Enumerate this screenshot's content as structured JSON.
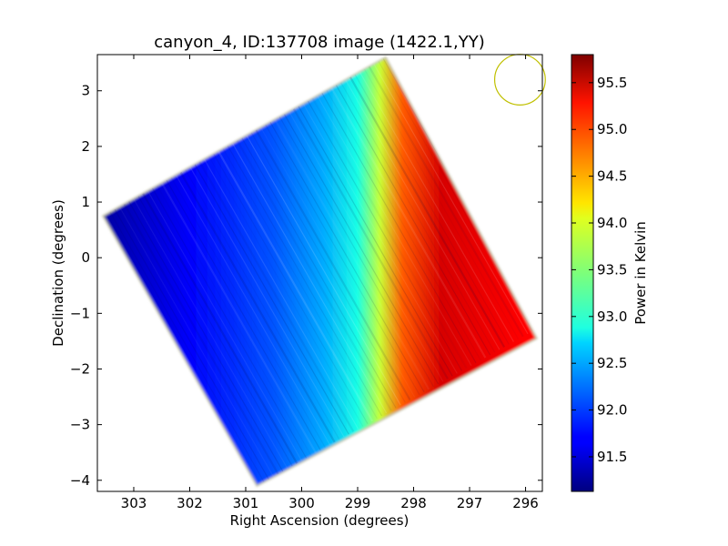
{
  "chart_data": {
    "type": "heatmap",
    "title": "canyon_4, ID:137708 image (1422.1,YY)",
    "xlabel": "Right Ascension (degrees)",
    "ylabel": "Declination (degrees)",
    "colorbar_label": "Power in Kelvin",
    "colormap": "jet",
    "x_range": [
      303.65,
      295.7
    ],
    "y_range": [
      -4.2,
      3.65
    ],
    "x_reversed": true,
    "x_ticks": [
      303,
      302,
      301,
      300,
      299,
      298,
      297,
      296
    ],
    "y_ticks": [
      -4,
      -3,
      -2,
      -1,
      0,
      1,
      2,
      3
    ],
    "colorbar_range": [
      91.13,
      95.8
    ],
    "colorbar_ticks": [
      91.5,
      92.0,
      92.5,
      93.0,
      93.5,
      94.0,
      94.5,
      95.0,
      95.5
    ],
    "grid": false,
    "footprint_corners": [
      {
        "ra": 303.55,
        "dec": 0.75
      },
      {
        "ra": 298.5,
        "dec": 3.6
      },
      {
        "ra": 295.8,
        "dec": -1.45
      },
      {
        "ra": 300.8,
        "dec": -4.1
      }
    ],
    "beam_marker": {
      "ra": 296.1,
      "dec": 3.2,
      "radius_deg": 0.35,
      "color": "#c0c000"
    },
    "gradient_along_ra": [
      {
        "ra": 303.5,
        "t": 91.3
      },
      {
        "ra": 302.0,
        "t": 91.7
      },
      {
        "ra": 300.5,
        "t": 92.1
      },
      {
        "ra": 299.6,
        "t": 92.5
      },
      {
        "ra": 299.0,
        "t": 93.0
      },
      {
        "ra": 298.6,
        "t": 93.8
      },
      {
        "ra": 298.2,
        "t": 94.8
      },
      {
        "ra": 297.5,
        "t": 95.4
      },
      {
        "ra": 296.0,
        "t": 95.2
      }
    ]
  }
}
